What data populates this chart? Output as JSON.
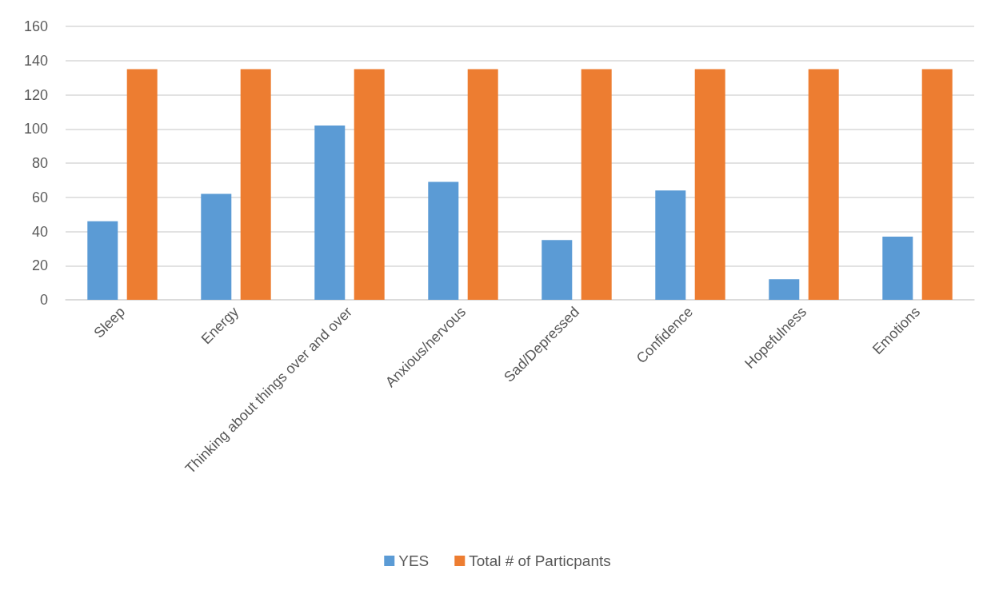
{
  "chart_data": {
    "type": "bar",
    "categories": [
      "Sleep",
      "Energy",
      "Thinking about things over and over",
      "Anxious/nervous",
      "Sad/Depressed",
      "Confidence",
      "Hopefulness",
      "Emotions"
    ],
    "series": [
      {
        "name": "YES",
        "color": "#5b9bd5",
        "values": [
          46,
          62,
          102,
          69,
          35,
          64,
          12,
          37
        ]
      },
      {
        "name": "Total # of Particpants",
        "color": "#ed7d31",
        "values": [
          135,
          135,
          135,
          135,
          135,
          135,
          135,
          135
        ]
      }
    ],
    "ylim": [
      0,
      160
    ],
    "yticks": [
      0,
      20,
      40,
      60,
      80,
      100,
      120,
      140,
      160
    ],
    "grid": "y",
    "legend": "bottom"
  }
}
